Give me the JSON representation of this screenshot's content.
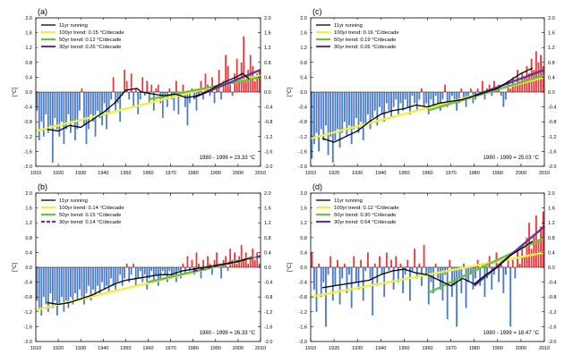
{
  "colors": {
    "positive_bar": "#e8383d",
    "negative_bar": "#4a7bc8",
    "running": "#000000",
    "trend100": "#f0f040",
    "trend50": "#6fc040",
    "trend30": "#5b3aa0"
  },
  "chart_data": [
    {
      "type": "bar",
      "panel_label": "(a)",
      "xlabel": "",
      "ylabel": "[°C]",
      "xlim": [
        1910,
        2010
      ],
      "ylim": [
        -2.0,
        2.0
      ],
      "x_ticks": [
        "1910",
        "1920",
        "1930",
        "1940",
        "1950",
        "1960",
        "1970",
        "1980",
        "1990",
        "2000",
        "2010"
      ],
      "y_ticks": [
        "-2.0",
        "-1.6",
        "-1.2",
        "-0.8",
        "-0.4",
        "0.0",
        "0.4",
        "0.8",
        "1.2",
        "1.6",
        "2.0"
      ],
      "baseline_note": "1980 - 1999 = 23.33 °C",
      "legend": [
        "11yr running",
        "100yr trend:  0.15 °C/decade",
        "50yr trend:  0.12 °C/decade",
        "30yr trend:  0.26 °C/decade"
      ],
      "legend_placement": "top-left",
      "start_year": 1910,
      "values": [
        -0.5,
        -1.3,
        -0.8,
        -1.2,
        -0.6,
        -1.1,
        -0.9,
        -1.9,
        -0.7,
        -1.0,
        -1.2,
        -0.8,
        -1.4,
        -1.0,
        -0.6,
        -1.1,
        -0.8,
        -1.3,
        -1.0,
        -0.5,
        0.1,
        -0.9,
        -1.4,
        -1.0,
        -0.6,
        -0.8,
        -1.2,
        -0.5,
        -0.7,
        -0.9,
        -0.3,
        -1.0,
        -0.6,
        -0.2,
        0.4,
        -0.5,
        -0.3,
        -0.8,
        -0.1,
        0.6,
        0.3,
        -0.2,
        0.5,
        -0.4,
        0.1,
        -0.6,
        -0.2,
        0.4,
        -0.1,
        0.3,
        -0.3,
        0.2,
        -0.5,
        0.1,
        0.2,
        -0.3,
        -0.7,
        -0.1,
        -0.4,
        0.1,
        -0.2,
        -0.5,
        0.3,
        -0.6,
        -0.1,
        0.2,
        -0.4,
        -0.9,
        -0.3,
        0.1,
        -0.2,
        -0.5,
        -0.1,
        0.3,
        -0.2,
        0.5,
        0.2,
        -0.1,
        0.4,
        -0.3,
        0.1,
        0.6,
        -0.2,
        0.3,
        1.0,
        0.7,
        0.2,
        -0.1,
        0.5,
        0.9,
        0.4,
        0.8,
        1.5,
        0.3,
        0.6,
        1.0,
        0.7,
        0.3,
        0.5,
        0.6
      ],
      "running": [
        [
          1915,
          -1.0
        ],
        [
          1920,
          -1.05
        ],
        [
          1925,
          -0.9
        ],
        [
          1930,
          -0.95
        ],
        [
          1935,
          -0.75
        ],
        [
          1940,
          -0.55
        ],
        [
          1945,
          -0.3
        ],
        [
          1950,
          0.05
        ],
        [
          1955,
          0.1
        ],
        [
          1957,
          0.0
        ],
        [
          1962,
          -0.05
        ],
        [
          1967,
          -0.1
        ],
        [
          1972,
          -0.05
        ],
        [
          1977,
          -0.15
        ],
        [
          1982,
          -0.1
        ],
        [
          1986,
          0.0
        ],
        [
          1990,
          0.15
        ],
        [
          1995,
          0.3
        ],
        [
          1999,
          0.4
        ],
        [
          2002,
          0.5
        ],
        [
          2005,
          0.35
        ]
      ],
      "trend100": [
        [
          1910,
          -1.05
        ],
        [
          2010,
          0.45
        ]
      ],
      "trend50": [
        [
          1960,
          -0.2
        ],
        [
          2010,
          0.4
        ]
      ],
      "trend30": [
        [
          1980,
          -0.15
        ],
        [
          2010,
          0.6
        ]
      ],
      "trend30_dashed": false
    },
    {
      "type": "bar",
      "panel_label": "(c)",
      "xlabel": "",
      "ylabel": "[°C]",
      "xlim": [
        1910,
        2010
      ],
      "ylim": [
        -2.0,
        2.0
      ],
      "x_ticks": [
        "1910",
        "1920",
        "1930",
        "1940",
        "1950",
        "1960",
        "1970",
        "1980",
        "1990",
        "2000",
        "2010"
      ],
      "y_ticks": [
        "-2.0",
        "-1.6",
        "-1.2",
        "-0.8",
        "-0.4",
        "0.0",
        "0.4",
        "0.8",
        "1.2",
        "1.6",
        "2.0"
      ],
      "baseline_note": "1980 - 1999 = 25.03 °C",
      "legend": [
        "11yr running",
        "100yr trend:  0.16 °C/decade",
        "50yr trend:  0.19 °C/decade",
        "30yr trend:  0.26 °C/decade"
      ],
      "legend_placement": "top-left",
      "start_year": 1910,
      "values": [
        -1.8,
        -1.4,
        -1.1,
        -1.6,
        -1.0,
        -1.3,
        -0.9,
        -1.7,
        -1.2,
        -1.9,
        -1.3,
        -1.0,
        -1.5,
        -1.1,
        -0.8,
        -1.2,
        -0.9,
        -1.4,
        -1.0,
        -0.7,
        -1.1,
        -0.8,
        -1.3,
        -0.9,
        -0.6,
        -1.0,
        -0.7,
        -0.5,
        -0.9,
        -0.4,
        -0.6,
        -0.8,
        -0.3,
        -0.5,
        -0.7,
        -0.4,
        -0.2,
        -0.6,
        -0.3,
        -0.5,
        -0.2,
        -0.4,
        -0.6,
        -0.1,
        -0.3,
        -0.5,
        -0.2,
        0.1,
        -0.4,
        -0.3,
        -0.6,
        -0.2,
        -0.4,
        -0.1,
        -0.3,
        -0.5,
        -0.2,
        0.2,
        -0.4,
        -0.3,
        -0.1,
        -0.2,
        -0.5,
        -0.3,
        0.1,
        -0.2,
        -0.4,
        -0.1,
        0.1,
        -0.3,
        -0.2,
        0.1,
        -0.1,
        0.3,
        -0.2,
        0.1,
        0.2,
        -0.1,
        0.3,
        0.1,
        0.2,
        -0.1,
        -0.4,
        -0.2,
        0.3,
        0.1,
        0.4,
        0.2,
        0.6,
        0.3,
        0.5,
        0.4,
        0.7,
        0.5,
        0.9,
        0.6,
        1.1,
        0.8,
        1.0,
        0.7
      ],
      "running": [
        [
          1915,
          -1.25
        ],
        [
          1920,
          -1.35
        ],
        [
          1925,
          -1.2
        ],
        [
          1930,
          -1.05
        ],
        [
          1935,
          -0.8
        ],
        [
          1940,
          -0.6
        ],
        [
          1945,
          -0.5
        ],
        [
          1950,
          -0.45
        ],
        [
          1955,
          -0.35
        ],
        [
          1960,
          -0.4
        ],
        [
          1965,
          -0.3
        ],
        [
          1970,
          -0.25
        ],
        [
          1975,
          -0.2
        ],
        [
          1980,
          -0.1
        ],
        [
          1985,
          0.0
        ],
        [
          1990,
          0.1
        ],
        [
          1995,
          0.3
        ],
        [
          2000,
          0.5
        ],
        [
          2005,
          0.65
        ]
      ],
      "trend100": [
        [
          1910,
          -1.25
        ],
        [
          2010,
          0.4
        ]
      ],
      "trend50": [
        [
          1960,
          -0.5
        ],
        [
          2010,
          0.45
        ]
      ],
      "trend30": [
        [
          1980,
          -0.1
        ],
        [
          2010,
          0.6
        ]
      ],
      "trend30_dashed": false
    },
    {
      "type": "bar",
      "panel_label": "(b)",
      "xlabel": "",
      "ylabel": "[°C]",
      "xlim": [
        1910,
        2010
      ],
      "ylim": [
        -2.0,
        2.0
      ],
      "x_ticks": [
        "1910",
        "1920",
        "1930",
        "1940",
        "1950",
        "1960",
        "1970",
        "1980",
        "1990",
        "2000",
        "2010"
      ],
      "y_ticks": [
        "-2.0",
        "-1.6",
        "-1.2",
        "-0.8",
        "-0.4",
        "0.0",
        "0.4",
        "0.8",
        "1.2",
        "1.6",
        "2.0"
      ],
      "baseline_note": "1980 - 1999 = 26.33 °C",
      "legend": [
        "11yr running",
        "100yr trend:  0.14 °C/decade",
        "50yr trend:  0.15 °C/decade",
        "30yr trend:  0.14 °C/decade"
      ],
      "legend_placement": "top-left",
      "start_year": 1910,
      "values": [
        -0.9,
        -1.1,
        -1.3,
        -0.8,
        -1.0,
        -1.2,
        -0.7,
        -1.1,
        -0.9,
        -1.3,
        -1.0,
        -0.8,
        -1.2,
        -0.9,
        -1.1,
        -0.8,
        -1.0,
        -0.7,
        -0.9,
        -0.6,
        -0.8,
        -1.0,
        -0.7,
        -0.5,
        -0.9,
        -0.6,
        -0.8,
        -0.5,
        -0.7,
        -0.4,
        -0.6,
        -0.5,
        -0.7,
        -0.3,
        -0.5,
        -0.6,
        -0.4,
        -0.2,
        -0.5,
        -0.3,
        0.1,
        -0.4,
        -0.2,
        0.1,
        -0.5,
        -0.3,
        -0.1,
        -0.4,
        -0.2,
        -0.6,
        -0.3,
        -0.1,
        -0.4,
        -0.2,
        -0.5,
        -0.3,
        -0.1,
        -0.2,
        -0.4,
        -0.1,
        -0.3,
        -0.2,
        -0.4,
        -0.1,
        -0.3,
        0.1,
        -0.2,
        0.3,
        -0.1,
        0.2,
        -0.2,
        0.4,
        0.1,
        -0.3,
        0.2,
        -0.1,
        0.3,
        0.1,
        -0.2,
        0.2,
        0.4,
        0.1,
        -0.3,
        0.2,
        0.3,
        -0.1,
        0.5,
        0.2,
        0.4,
        0.1,
        0.3,
        0.6,
        0.2,
        0.4,
        0.1,
        0.3,
        0.5,
        0.2,
        0.4,
        0.1
      ],
      "running": [
        [
          1915,
          -0.95
        ],
        [
          1920,
          -1.0
        ],
        [
          1925,
          -0.95
        ],
        [
          1930,
          -0.85
        ],
        [
          1935,
          -0.75
        ],
        [
          1940,
          -0.6
        ],
        [
          1945,
          -0.45
        ],
        [
          1950,
          -0.35
        ],
        [
          1955,
          -0.3
        ],
        [
          1960,
          -0.25
        ],
        [
          1965,
          -0.2
        ],
        [
          1970,
          -0.2
        ],
        [
          1975,
          -0.1
        ],
        [
          1980,
          -0.05
        ],
        [
          1985,
          0.0
        ],
        [
          1990,
          0.05
        ],
        [
          1995,
          0.1
        ],
        [
          2000,
          0.15
        ],
        [
          2005,
          0.25
        ]
      ],
      "trend100": [
        [
          1910,
          -1.15
        ],
        [
          2010,
          0.3
        ]
      ],
      "trend50": [
        [
          1960,
          -0.4
        ],
        [
          2010,
          0.3
        ]
      ],
      "trend30": [
        [
          1980,
          -0.1
        ],
        [
          2010,
          0.3
        ]
      ],
      "trend30_dashed": true
    },
    {
      "type": "bar",
      "panel_label": "(d)",
      "xlabel": "",
      "ylabel": "[°C]",
      "xlim": [
        1910,
        2010
      ],
      "ylim": [
        -2.0,
        2.0
      ],
      "x_ticks": [
        "1910",
        "1920",
        "1930",
        "1940",
        "1950",
        "1960",
        "1970",
        "1980",
        "1990",
        "2000",
        "2010"
      ],
      "y_ticks": [
        "-2.0",
        "-1.6",
        "-1.2",
        "-0.8",
        "-0.4",
        "0.0",
        "0.4",
        "0.8",
        "1.2",
        "1.6",
        "2.0"
      ],
      "baseline_note": "1980 - 1999 = 18.47 °C",
      "legend": [
        "11yr running",
        "100yr trend:  0.12 °C/decade",
        "50yr trend:  0.30 °C/decade",
        "30yr trend:  0.54 °C/decade"
      ],
      "legend_placement": "top-left",
      "start_year": 1910,
      "values": [
        0.4,
        -0.6,
        -1.2,
        0.1,
        -0.8,
        -0.4,
        -1.6,
        -0.2,
        0.3,
        -0.9,
        -0.5,
        0.2,
        -1.0,
        -0.3,
        0.1,
        -0.7,
        -0.2,
        -1.1,
        0.3,
        -0.4,
        -0.6,
        0.2,
        -0.9,
        -0.1,
        0.4,
        -0.3,
        -1.3,
        0.1,
        -0.5,
        0.3,
        -0.2,
        -0.8,
        0.4,
        -0.1,
        0.2,
        -0.6,
        0.3,
        -0.4,
        0.1,
        -0.7,
        -0.2,
        0.2,
        -0.9,
        -0.1,
        0.5,
        -0.3,
        0.1,
        -0.5,
        0.6,
        -0.2,
        -1.0,
        -0.4,
        -0.7,
        0.1,
        -0.3,
        -0.6,
        -0.9,
        -0.2,
        -1.4,
        0.2,
        -0.8,
        -0.5,
        -1.6,
        -0.3,
        -0.7,
        0.1,
        -1.1,
        -0.4,
        -0.2,
        -0.6,
        -0.3,
        0.2,
        -0.5,
        0.1,
        -0.8,
        -0.3,
        0.3,
        -0.6,
        -0.2,
        0.4,
        -0.4,
        0.1,
        -0.7,
        -0.2,
        0.3,
        -1.6,
        0.2,
        -0.3,
        0.5,
        0.1,
        0.6,
        0.3,
        0.8,
        1.2,
        0.5,
        0.9,
        1.4,
        0.7,
        1.1,
        1.5
      ],
      "running": [
        [
          1915,
          -0.55
        ],
        [
          1920,
          -0.5
        ],
        [
          1925,
          -0.45
        ],
        [
          1930,
          -0.4
        ],
        [
          1935,
          -0.35
        ],
        [
          1940,
          -0.2
        ],
        [
          1945,
          -0.1
        ],
        [
          1950,
          -0.05
        ],
        [
          1955,
          -0.15
        ],
        [
          1960,
          -0.2
        ],
        [
          1965,
          -0.35
        ],
        [
          1970,
          -0.5
        ],
        [
          1975,
          -0.3
        ],
        [
          1980,
          -0.45
        ],
        [
          1985,
          -0.2
        ],
        [
          1990,
          0.0
        ],
        [
          1995,
          0.3
        ],
        [
          2000,
          0.5
        ],
        [
          2005,
          0.7
        ]
      ],
      "trend100": [
        [
          1910,
          -0.8
        ],
        [
          2010,
          0.4
        ]
      ],
      "trend50": [
        [
          1960,
          -0.7
        ],
        [
          2010,
          0.8
        ]
      ],
      "trend30": [
        [
          1980,
          -0.5
        ],
        [
          2010,
          1.1
        ]
      ],
      "trend30_dashed": false
    }
  ]
}
